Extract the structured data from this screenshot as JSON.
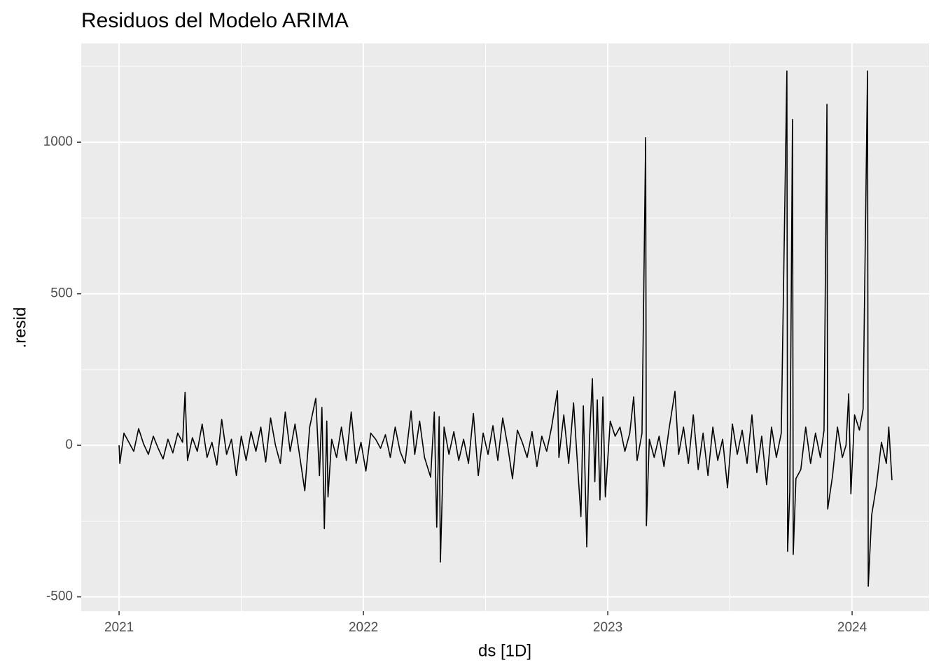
{
  "chart_data": {
    "type": "line",
    "title": "Residuos del Modelo ARIMA",
    "x_label": "ds [1D]",
    "y_label": ".resid",
    "color": "#000000",
    "grid": true,
    "xlim": [
      2020.845,
      2024.315
    ],
    "xticks": [
      2021,
      2022,
      2023,
      2024
    ],
    "x_minor_ticks": [
      2021.5,
      2022.5,
      2023.5
    ],
    "ylim": [
      -547,
      1326
    ],
    "yticks": [
      -500,
      0,
      500,
      1000
    ],
    "y_minor_ticks": [
      -250,
      250,
      750,
      1250
    ],
    "x": [
      2021.0,
      2021.003,
      2021.02,
      2021.04,
      2021.06,
      2021.08,
      2021.1,
      2021.12,
      2021.14,
      2021.16,
      2021.18,
      2021.2,
      2021.22,
      2021.24,
      2021.26,
      2021.27,
      2021.28,
      2021.3,
      2021.32,
      2021.34,
      2021.36,
      2021.38,
      2021.4,
      2021.42,
      2021.44,
      2021.46,
      2021.48,
      2021.5,
      2021.52,
      2021.54,
      2021.56,
      2021.58,
      2021.6,
      2021.62,
      2021.64,
      2021.66,
      2021.68,
      2021.7,
      2021.72,
      2021.74,
      2021.76,
      2021.78,
      2021.805,
      2021.82,
      2021.83,
      2021.84,
      2021.85,
      2021.855,
      2021.87,
      2021.89,
      2021.91,
      2021.93,
      2021.95,
      2021.97,
      2021.99,
      2022.01,
      2022.03,
      2022.05,
      2022.07,
      2022.09,
      2022.11,
      2022.13,
      2022.15,
      2022.17,
      2022.195,
      2022.21,
      2022.23,
      2022.25,
      2022.275,
      2022.29,
      2022.3,
      2022.31,
      2022.315,
      2022.33,
      2022.35,
      2022.37,
      2022.39,
      2022.41,
      2022.43,
      2022.45,
      2022.47,
      2022.49,
      2022.51,
      2022.53,
      2022.55,
      2022.57,
      2022.59,
      2022.61,
      2022.63,
      2022.65,
      2022.67,
      2022.69,
      2022.71,
      2022.73,
      2022.75,
      2022.77,
      2022.794,
      2022.8,
      2022.82,
      2022.84,
      2022.86,
      2022.875,
      2022.89,
      2022.9,
      2022.914,
      2022.925,
      2022.937,
      2022.947,
      2022.957,
      2022.968,
      2022.98,
      2022.99,
      2023.01,
      2023.03,
      2023.05,
      2023.07,
      2023.09,
      2023.106,
      2023.12,
      2023.14,
      2023.155,
      2023.158,
      2023.17,
      2023.19,
      2023.21,
      2023.23,
      2023.25,
      2023.275,
      2023.29,
      2023.31,
      2023.33,
      2023.35,
      2023.37,
      2023.39,
      2023.41,
      2023.43,
      2023.45,
      2023.47,
      2023.49,
      2023.51,
      2023.53,
      2023.55,
      2023.57,
      2023.59,
      2023.61,
      2023.63,
      2023.65,
      2023.67,
      2023.69,
      2023.71,
      2023.733,
      2023.736,
      2023.745,
      2023.756,
      2023.759,
      2023.77,
      2023.79,
      2023.81,
      2023.83,
      2023.85,
      2023.87,
      2023.885,
      2023.897,
      2023.9,
      2023.92,
      2023.94,
      2023.96,
      2023.975,
      2023.986,
      2023.995,
      2024.01,
      2024.03,
      2024.045,
      2024.063,
      2024.066,
      2024.08,
      2024.1,
      2024.12,
      2024.14,
      2024.15,
      2024.163
    ],
    "values": [
      0,
      -60,
      40,
      10,
      -20,
      55,
      5,
      -30,
      30,
      -10,
      -45,
      20,
      -25,
      40,
      10,
      175,
      -50,
      25,
      -20,
      70,
      -40,
      10,
      -65,
      85,
      -30,
      20,
      -100,
      30,
      -50,
      45,
      -20,
      60,
      -55,
      90,
      0,
      -60,
      110,
      -20,
      70,
      -40,
      -150,
      60,
      155,
      -100,
      125,
      -275,
      80,
      -170,
      20,
      -40,
      60,
      -50,
      110,
      -60,
      10,
      -85,
      40,
      20,
      -10,
      35,
      -40,
      60,
      -20,
      -60,
      113,
      -30,
      80,
      -40,
      -105,
      110,
      -270,
      95,
      -385,
      60,
      -30,
      45,
      -50,
      20,
      -60,
      105,
      -100,
      40,
      -30,
      65,
      -50,
      90,
      0,
      -110,
      50,
      10,
      -40,
      45,
      -70,
      30,
      -20,
      60,
      180,
      -40,
      100,
      -60,
      140,
      -50,
      -235,
      130,
      -335,
      20,
      220,
      -120,
      150,
      -180,
      160,
      -170,
      80,
      30,
      60,
      -20,
      40,
      160,
      -50,
      40,
      1015,
      -265,
      20,
      -40,
      30,
      -70,
      50,
      178,
      -30,
      60,
      -60,
      100,
      -80,
      40,
      -100,
      60,
      -50,
      20,
      -140,
      70,
      -30,
      50,
      -60,
      100,
      -90,
      30,
      -130,
      60,
      -40,
      40,
      1235,
      -350,
      -150,
      1075,
      -360,
      -110,
      -80,
      60,
      -60,
      40,
      -40,
      50,
      1125,
      -210,
      -100,
      60,
      -40,
      0,
      170,
      -160,
      100,
      50,
      120,
      1235,
      -465,
      -230,
      -130,
      10,
      -60,
      60,
      -115
    ]
  }
}
